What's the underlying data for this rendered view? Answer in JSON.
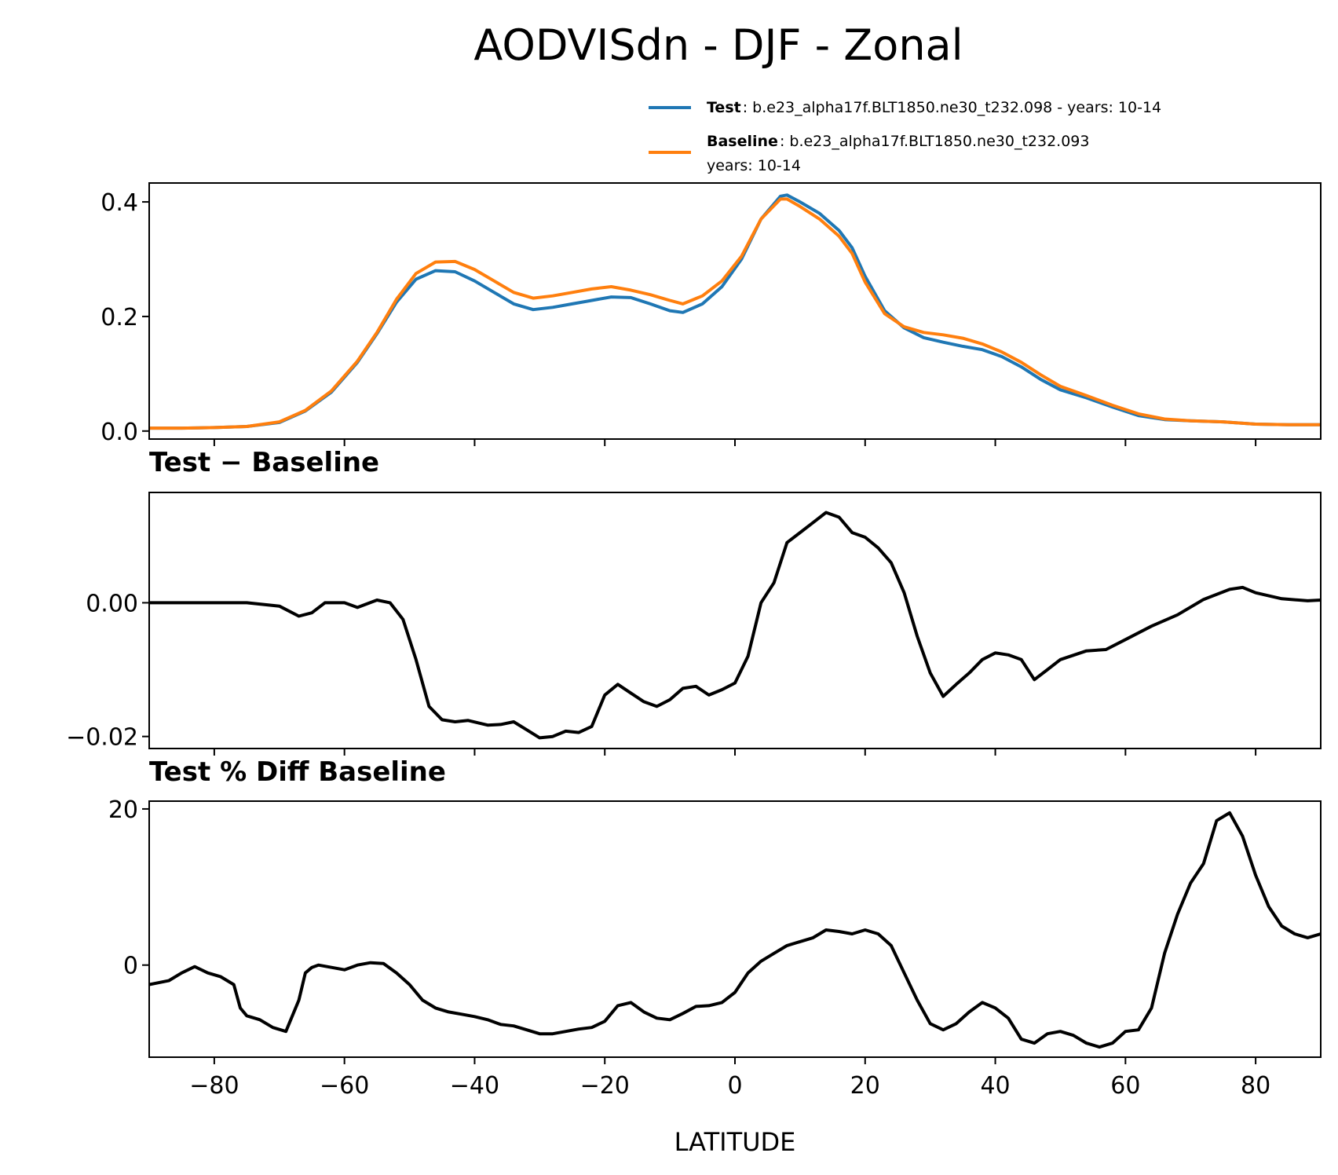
{
  "chart_data": {
    "title": "AODVISdn - DJF - Zonal",
    "xlabel": "LATITUDE",
    "xlim": [
      -90,
      90
    ],
    "xticks": [
      -80,
      -60,
      -40,
      -20,
      0,
      20,
      40,
      60,
      80
    ],
    "xtick_labels": [
      "−80",
      "−60",
      "−40",
      "−20",
      "0",
      "20",
      "40",
      "60",
      "80"
    ],
    "legend": {
      "placement": "above-top-right",
      "entries": [
        {
          "name": "Test",
          "text": ": b.e23_alpha17f.BLT1850.ne30_t232.098 - years: 10-14",
          "color": "#1f77b4"
        },
        {
          "name": "Baseline",
          "text": ": b.e23_alpha17f.BLT1850.ne30_t232.093",
          "text2": "years: 10-14",
          "color": "#ff7f0e"
        }
      ]
    },
    "panels": [
      {
        "type": "line",
        "title": "",
        "ylim": [
          -0.014,
          0.433
        ],
        "yticks": [
          0.0,
          0.2,
          0.4
        ],
        "ytick_labels": [
          "0.0",
          "0.2",
          "0.4"
        ],
        "series": [
          {
            "name": "Test",
            "color": "#1f77b4",
            "x": [
              -90,
              -85,
              -80,
              -75,
              -70,
              -66,
              -62,
              -58,
              -55,
              -52,
              -49,
              -46,
              -43,
              -40,
              -37,
              -34,
              -31,
              -28,
              -25,
              -22,
              -19,
              -16,
              -13,
              -10,
              -8,
              -5,
              -2,
              1,
              4,
              7,
              8,
              10,
              13,
              16,
              18,
              20,
              23,
              26,
              29,
              32,
              35,
              38,
              41,
              44,
              47,
              50,
              54,
              58,
              62,
              66,
              70,
              75,
              80,
              85,
              90
            ],
            "y": [
              0.005,
              0.005,
              0.006,
              0.008,
              0.015,
              0.035,
              0.068,
              0.12,
              0.17,
              0.225,
              0.265,
              0.28,
              0.278,
              0.262,
              0.242,
              0.222,
              0.212,
              0.216,
              0.222,
              0.228,
              0.234,
              0.233,
              0.222,
              0.21,
              0.207,
              0.222,
              0.252,
              0.3,
              0.37,
              0.41,
              0.412,
              0.4,
              0.38,
              0.35,
              0.32,
              0.27,
              0.21,
              0.18,
              0.163,
              0.155,
              0.148,
              0.142,
              0.13,
              0.112,
              0.09,
              0.072,
              0.058,
              0.042,
              0.027,
              0.02,
              0.018,
              0.016,
              0.012,
              0.011,
              0.011
            ]
          },
          {
            "name": "Baseline",
            "color": "#ff7f0e",
            "x": [
              -90,
              -85,
              -80,
              -75,
              -70,
              -66,
              -62,
              -58,
              -55,
              -52,
              -49,
              -46,
              -43,
              -40,
              -37,
              -34,
              -31,
              -28,
              -25,
              -22,
              -19,
              -16,
              -13,
              -10,
              -8,
              -5,
              -2,
              1,
              4,
              7,
              8,
              10,
              13,
              16,
              18,
              20,
              23,
              26,
              29,
              32,
              35,
              38,
              41,
              44,
              47,
              50,
              54,
              58,
              62,
              66,
              70,
              75,
              80,
              85,
              90
            ],
            "y": [
              0.005,
              0.005,
              0.006,
              0.008,
              0.016,
              0.036,
              0.07,
              0.122,
              0.172,
              0.23,
              0.275,
              0.295,
              0.296,
              0.282,
              0.262,
              0.242,
              0.232,
              0.236,
              0.242,
              0.248,
              0.252,
              0.246,
              0.238,
              0.228,
              0.222,
              0.236,
              0.262,
              0.305,
              0.37,
              0.405,
              0.405,
              0.392,
              0.37,
              0.34,
              0.31,
              0.26,
              0.205,
              0.182,
              0.172,
              0.168,
              0.162,
              0.152,
              0.138,
              0.12,
              0.098,
              0.078,
              0.062,
              0.045,
              0.03,
              0.021,
              0.018,
              0.016,
              0.012,
              0.011,
              0.011
            ]
          }
        ]
      },
      {
        "type": "line",
        "title": "Test − Baseline",
        "ylim": [
          -0.0218,
          0.0165
        ],
        "yticks": [
          -0.02,
          0.0
        ],
        "ytick_labels": [
          "−0.02",
          "0.00"
        ],
        "series": [
          {
            "name": "",
            "color": "#000000",
            "x": [
              -90,
              -85,
              -80,
              -75,
              -70,
              -67,
              -65,
              -63,
              -60,
              -58,
              -55,
              -53,
              -51,
              -49,
              -47,
              -45,
              -43,
              -41,
              -38,
              -36,
              -34,
              -32,
              -30,
              -28,
              -26,
              -24,
              -22,
              -20,
              -18,
              -16,
              -14,
              -12,
              -10,
              -8,
              -6,
              -4,
              -2,
              0,
              2,
              4,
              6,
              8,
              10,
              12,
              14,
              16,
              18,
              20,
              22,
              24,
              26,
              28,
              30,
              32,
              34,
              36,
              38,
              40,
              42,
              44,
              46,
              48,
              50,
              54,
              57,
              60,
              64,
              68,
              72,
              76,
              78,
              80,
              84,
              88,
              90
            ],
            "y": [
              0.0,
              0.0,
              0.0,
              0.0,
              -0.0005,
              -0.002,
              -0.0015,
              0.0,
              0.0,
              -0.0007,
              0.0004,
              0.0,
              -0.0025,
              -0.0085,
              -0.0155,
              -0.0175,
              -0.0178,
              -0.0176,
              -0.0183,
              -0.0182,
              -0.0178,
              -0.019,
              -0.0202,
              -0.02,
              -0.0192,
              -0.0194,
              -0.0185,
              -0.0138,
              -0.0122,
              -0.0135,
              -0.0148,
              -0.0155,
              -0.0145,
              -0.0128,
              -0.0125,
              -0.0138,
              -0.013,
              -0.012,
              -0.008,
              0.0,
              0.003,
              0.009,
              0.0105,
              0.012,
              0.0135,
              0.0128,
              0.0105,
              0.0098,
              0.0082,
              0.006,
              0.0015,
              -0.005,
              -0.0105,
              -0.014,
              -0.0122,
              -0.0105,
              -0.0085,
              -0.0075,
              -0.0078,
              -0.0085,
              -0.0115,
              -0.01,
              -0.0085,
              -0.0072,
              -0.007,
              -0.0055,
              -0.0035,
              -0.0018,
              0.0005,
              0.002,
              0.0023,
              0.0015,
              0.0006,
              0.0003,
              0.0004
            ]
          }
        ]
      },
      {
        "type": "line",
        "title": "Test % Diff Baseline",
        "ylim": [
          -11.8,
          21.0
        ],
        "yticks": [
          0,
          20
        ],
        "ytick_labels": [
          "0",
          "20"
        ],
        "series": [
          {
            "name": "",
            "color": "#000000",
            "x": [
              -90,
              -87,
              -85,
              -83,
              -81,
              -79,
              -77,
              -76,
              -75,
              -73,
              -71,
              -69,
              -67,
              -66,
              -65,
              -64,
              -62,
              -60,
              -58,
              -56,
              -54,
              -52,
              -50,
              -48,
              -46,
              -44,
              -42,
              -40,
              -38,
              -36,
              -34,
              -32,
              -30,
              -28,
              -26,
              -24,
              -22,
              -20,
              -18,
              -16,
              -14,
              -12,
              -10,
              -8,
              -6,
              -4,
              -2,
              0,
              2,
              4,
              6,
              8,
              10,
              12,
              14,
              16,
              18,
              20,
              22,
              24,
              26,
              28,
              30,
              32,
              34,
              36,
              38,
              40,
              42,
              44,
              46,
              48,
              50,
              52,
              54,
              56,
              58,
              60,
              62,
              64,
              66,
              68,
              70,
              72,
              74,
              76,
              78,
              80,
              82,
              84,
              86,
              88,
              90
            ],
            "y": [
              -2.5,
              -2.0,
              -1.0,
              -0.2,
              -1.0,
              -1.5,
              -2.5,
              -5.5,
              -6.5,
              -7.0,
              -8.0,
              -8.5,
              -4.5,
              -1.0,
              -0.3,
              0.0,
              -0.3,
              -0.6,
              0.0,
              0.3,
              0.2,
              -1.0,
              -2.5,
              -4.5,
              -5.5,
              -6.0,
              -6.3,
              -6.6,
              -7.0,
              -7.6,
              -7.8,
              -8.3,
              -8.8,
              -8.8,
              -8.5,
              -8.2,
              -8.0,
              -7.2,
              -5.2,
              -4.8,
              -6.0,
              -6.8,
              -7.0,
              -6.2,
              -5.3,
              -5.2,
              -4.8,
              -3.5,
              -1.0,
              0.5,
              1.5,
              2.5,
              3.0,
              3.5,
              4.5,
              4.3,
              4.0,
              4.5,
              4.0,
              2.5,
              -1.0,
              -4.5,
              -7.5,
              -8.3,
              -7.5,
              -6.0,
              -4.8,
              -5.5,
              -6.8,
              -9.5,
              -10.0,
              -8.8,
              -8.5,
              -9.0,
              -10.0,
              -10.5,
              -10.0,
              -8.5,
              -8.3,
              -5.5,
              1.5,
              6.5,
              10.5,
              13.0,
              18.5,
              19.5,
              16.5,
              11.5,
              7.5,
              5.0,
              4.0,
              3.5,
              4.0
            ]
          }
        ]
      }
    ]
  }
}
